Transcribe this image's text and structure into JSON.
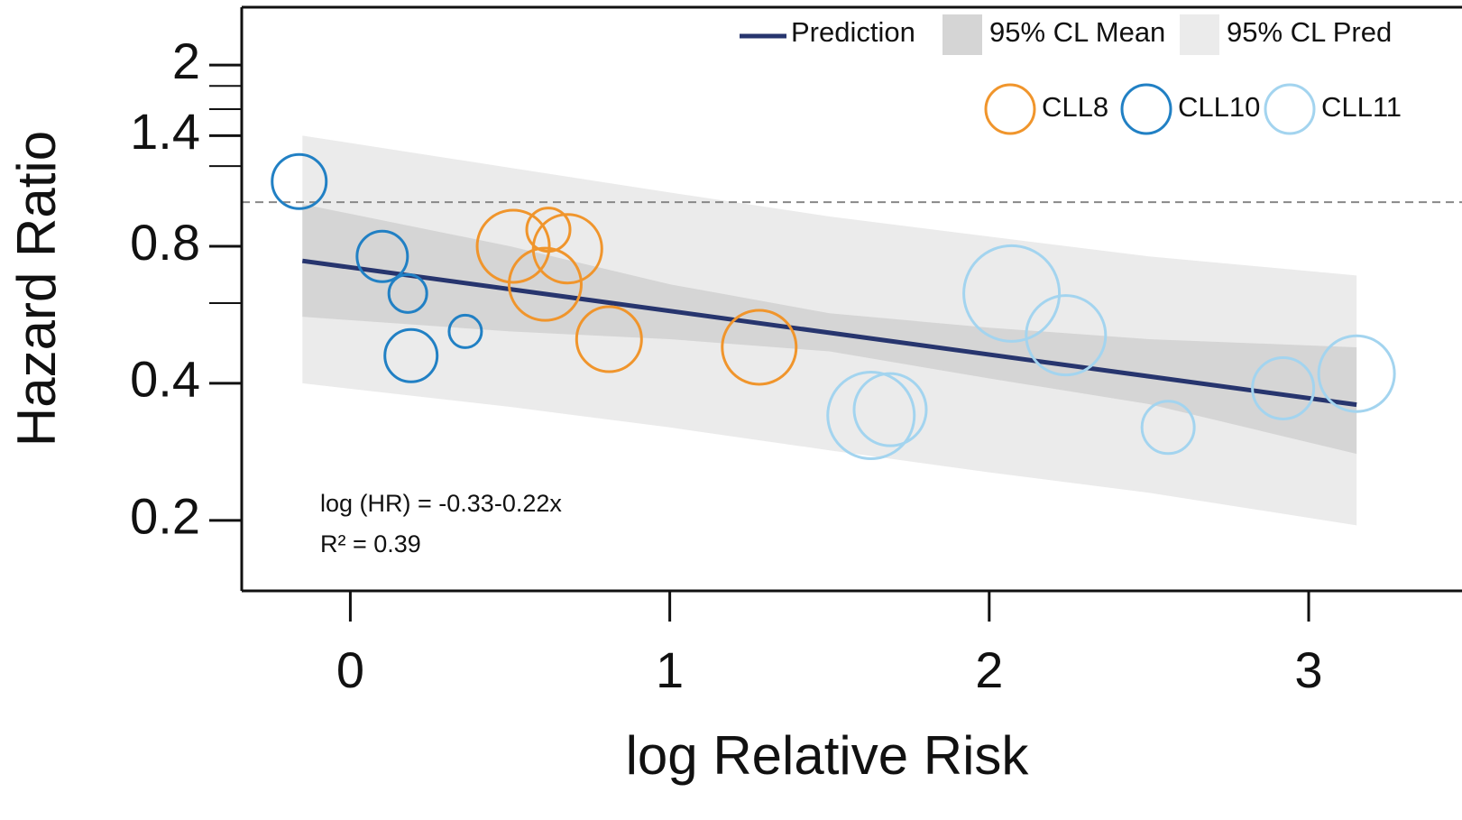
{
  "chart_data": {
    "type": "bubble",
    "x_label": "log Relative Risk",
    "y_label": "Hazard Ratio",
    "y_log": true,
    "xlim": [
      -0.34,
      3.48
    ],
    "ylim": [
      0.14,
      2.68
    ],
    "xticks": [
      0,
      1,
      2,
      3
    ],
    "yticks": [
      2,
      1.4,
      0.8,
      0.4,
      0.2
    ],
    "yticks_minor": [
      1.8,
      1.6,
      1.2,
      0.6
    ],
    "hline": 1,
    "annotations": [
      "log (HR) = -0.33-0.22x",
      "R² = 0.39"
    ],
    "fit": {
      "name": "Prediction",
      "color": "#27356e",
      "x": [
        -0.15,
        3.15
      ],
      "values": [
        0.743,
        0.359
      ]
    },
    "bands": [
      {
        "name": "95% CL Pred",
        "color": "#ebebeb",
        "x": [
          -0.15,
          0.5,
          1.0,
          1.5,
          2.0,
          2.5,
          3.15
        ],
        "upper": [
          1.4,
          1.19,
          1.05,
          0.93,
          0.84,
          0.76,
          0.69
        ],
        "lower": [
          0.4,
          0.355,
          0.32,
          0.285,
          0.255,
          0.23,
          0.195
        ]
      },
      {
        "name": "95% CL Mean",
        "color": "#d5d5d5",
        "x": [
          -0.15,
          0.5,
          1.0,
          1.5,
          2.0,
          2.5,
          3.15
        ],
        "upper": [
          0.99,
          0.8,
          0.66,
          0.57,
          0.53,
          0.5,
          0.48
        ],
        "lower": [
          0.56,
          0.52,
          0.5,
          0.47,
          0.41,
          0.36,
          0.28
        ]
      }
    ],
    "series": [
      {
        "name": "CLL8",
        "color": "#f0952c",
        "x": [
          0.51,
          0.62,
          0.68,
          0.61,
          0.81,
          1.28
        ],
        "values": [
          0.8,
          0.87,
          0.79,
          0.66,
          0.5,
          0.48
        ],
        "sizes": [
          40,
          24,
          38,
          40,
          36,
          41
        ]
      },
      {
        "name": "CLL10",
        "color": "#2180c4",
        "x": [
          -0.16,
          0.1,
          0.18,
          0.19,
          0.36
        ],
        "values": [
          1.11,
          0.76,
          0.63,
          0.46,
          0.52
        ],
        "sizes": [
          30,
          28,
          21,
          29,
          18
        ]
      },
      {
        "name": "CLL11",
        "color": "#a3d4ef",
        "x": [
          2.07,
          2.24,
          1.63,
          1.69,
          2.56,
          2.92,
          3.15
        ],
        "values": [
          0.63,
          0.51,
          0.34,
          0.35,
          0.32,
          0.39,
          0.42
        ],
        "sizes": [
          53,
          44,
          48,
          40,
          29,
          34,
          42
        ]
      }
    ]
  }
}
